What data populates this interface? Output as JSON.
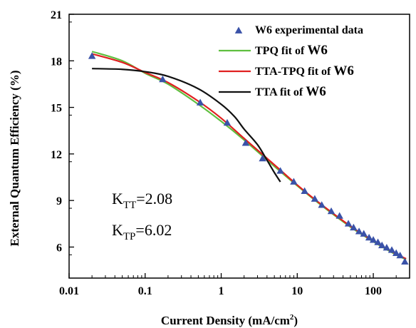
{
  "chart_data": {
    "type": "scatter",
    "title": "",
    "xlabel_main": "Current Density (mA/cm",
    "xlabel_sup": "2",
    "xlabel_tail": ")",
    "ylabel": "External Quantum Efficiency (%)",
    "xscale": "log",
    "xlim": [
      0.01,
      300
    ],
    "ylim": [
      4,
      21
    ],
    "xticks": [
      {
        "value": 0.01,
        "label": "0.01"
      },
      {
        "value": 0.1,
        "label": "0.1"
      },
      {
        "value": 1,
        "label": "1"
      },
      {
        "value": 10,
        "label": "10"
      },
      {
        "value": 100,
        "label": "100"
      }
    ],
    "yticks": [
      {
        "value": 6,
        "label": "6"
      },
      {
        "value": 9,
        "label": "9"
      },
      {
        "value": 12,
        "label": "12"
      },
      {
        "value": 15,
        "label": "15"
      },
      {
        "value": 18,
        "label": "18"
      },
      {
        "value": 21,
        "label": "21"
      }
    ],
    "legend_position": "top-right",
    "series": [
      {
        "name": "W6 experimental data",
        "kind": "marker",
        "color": "#3a52a8",
        "points": [
          [
            0.02,
            18.3
          ],
          [
            0.17,
            16.8
          ],
          [
            0.53,
            15.3
          ],
          [
            1.2,
            14.0
          ],
          [
            2.1,
            12.7
          ],
          [
            3.5,
            11.7
          ],
          [
            6.0,
            10.9
          ],
          [
            9.0,
            10.2
          ],
          [
            12.5,
            9.6
          ],
          [
            17.0,
            9.1
          ],
          [
            21.0,
            8.7
          ],
          [
            28.0,
            8.3
          ],
          [
            36.0,
            8.0
          ],
          [
            47.0,
            7.5
          ],
          [
            55.0,
            7.25
          ],
          [
            65.0,
            7.0
          ],
          [
            75.0,
            6.85
          ],
          [
            88.0,
            6.6
          ],
          [
            100.0,
            6.45
          ],
          [
            115.0,
            6.3
          ],
          [
            130.0,
            6.1
          ],
          [
            150.0,
            5.95
          ],
          [
            175.0,
            5.8
          ],
          [
            200.0,
            5.6
          ],
          [
            225.0,
            5.45
          ],
          [
            260.0,
            5.05
          ]
        ]
      },
      {
        "name": "TPQ fit of",
        "name_suffix": "W6",
        "kind": "line",
        "color": "#5fbf3f",
        "points": [
          [
            0.02,
            18.6
          ],
          [
            0.05,
            18.0
          ],
          [
            0.1,
            17.2
          ],
          [
            0.2,
            16.5
          ],
          [
            0.5,
            15.2
          ],
          [
            1.0,
            14.1
          ],
          [
            2.0,
            12.9
          ],
          [
            5.0,
            11.2
          ],
          [
            10.0,
            9.95
          ],
          [
            20.0,
            8.75
          ],
          [
            50.0,
            7.3
          ],
          [
            100.0,
            6.35
          ],
          [
            200.0,
            5.5
          ],
          [
            270.0,
            5.2
          ]
        ]
      },
      {
        "name": "TTA-TPQ fit of",
        "name_suffix": "W6",
        "kind": "line",
        "color": "#e02020",
        "points": [
          [
            0.02,
            18.45
          ],
          [
            0.05,
            17.9
          ],
          [
            0.1,
            17.25
          ],
          [
            0.2,
            16.6
          ],
          [
            0.5,
            15.4
          ],
          [
            1.0,
            14.3
          ],
          [
            2.0,
            13.0
          ],
          [
            5.0,
            11.3
          ],
          [
            10.0,
            10.0
          ],
          [
            20.0,
            8.8
          ],
          [
            50.0,
            7.35
          ],
          [
            100.0,
            6.4
          ],
          [
            200.0,
            5.55
          ],
          [
            270.0,
            5.25
          ]
        ]
      },
      {
        "name": "TTA fit of",
        "name_suffix": "W6",
        "kind": "line",
        "color": "#111111",
        "points": [
          [
            0.02,
            17.5
          ],
          [
            0.05,
            17.45
          ],
          [
            0.1,
            17.3
          ],
          [
            0.2,
            17.0
          ],
          [
            0.5,
            16.2
          ],
          [
            1.0,
            15.2
          ],
          [
            1.5,
            14.4
          ],
          [
            2.0,
            13.6
          ],
          [
            3.0,
            12.6
          ],
          [
            4.0,
            11.6
          ],
          [
            5.0,
            10.8
          ],
          [
            6.0,
            10.2
          ]
        ]
      }
    ],
    "annotations": [
      {
        "main": "K",
        "sub": "TT",
        "tail": "=2.08"
      },
      {
        "main": "K",
        "sub": "TP",
        "tail": "=6.02"
      }
    ]
  }
}
